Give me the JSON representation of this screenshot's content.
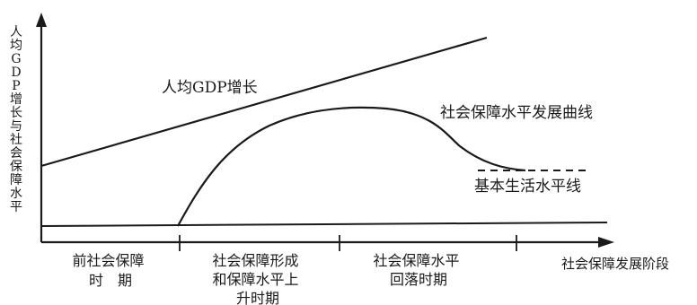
{
  "y_axis_title": "人均GDP增长与社会保障水平",
  "x_axis_title": "社会保障发展阶段",
  "curves": {
    "gdp_label": "人均GDP增长",
    "social_security_label": "社会保障水平发展曲线",
    "basic_living_label": "基本生活水平线"
  },
  "stages": [
    {
      "lines": [
        "前社会保障",
        "时　期"
      ]
    },
    {
      "lines": [
        "社会保障形成",
        "和保障水平上",
        "升时期"
      ]
    },
    {
      "lines": [
        "社会保障水平",
        "回落时期"
      ]
    }
  ],
  "colors": {
    "ink": "#1a1a1a"
  }
}
